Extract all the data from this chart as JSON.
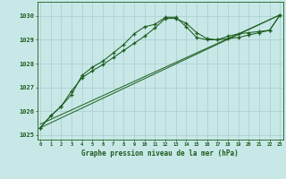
{
  "title": "Graphe pression niveau de la mer (hPa)",
  "background_color": "#c8e8e8",
  "grid_color": "#aacccc",
  "line_color": "#1a5c1a",
  "x_ticks": [
    0,
    1,
    2,
    3,
    4,
    5,
    6,
    7,
    8,
    9,
    10,
    11,
    12,
    13,
    14,
    15,
    16,
    17,
    18,
    19,
    20,
    21,
    22,
    23
  ],
  "ylim": [
    1024.8,
    1030.6
  ],
  "yticks": [
    1025,
    1026,
    1027,
    1028,
    1029,
    1030
  ],
  "series1_x": [
    0,
    1,
    2,
    3,
    4,
    5,
    6,
    7,
    8,
    9,
    10,
    11,
    12,
    13,
    14,
    15,
    16,
    17,
    18,
    19,
    20,
    21,
    22,
    23
  ],
  "series1_y": [
    1025.3,
    1025.8,
    1026.2,
    1026.7,
    1027.5,
    1027.85,
    1028.1,
    1028.45,
    1028.8,
    1029.25,
    1029.55,
    1029.65,
    1029.95,
    1029.95,
    1029.55,
    1029.1,
    1029.0,
    1029.0,
    1029.15,
    1029.25,
    1029.3,
    1029.35,
    1029.4,
    1030.05
  ],
  "series2_x": [
    0,
    1,
    2,
    3,
    4,
    5,
    6,
    7,
    8,
    9,
    10,
    11,
    12,
    13,
    14,
    15,
    16,
    17,
    18,
    19,
    20,
    21,
    22,
    23
  ],
  "series2_y": [
    1025.3,
    1025.8,
    1026.2,
    1026.85,
    1027.4,
    1027.7,
    1027.95,
    1028.25,
    1028.55,
    1028.85,
    1029.15,
    1029.5,
    1029.9,
    1029.9,
    1029.7,
    1029.3,
    1029.05,
    1029.0,
    1029.05,
    1029.1,
    1029.2,
    1029.3,
    1029.4,
    1030.05
  ],
  "series3_x": [
    0,
    23
  ],
  "series3_y": [
    1025.3,
    1030.05
  ],
  "series4_x": [
    0,
    23
  ],
  "series4_y": [
    1025.45,
    1030.05
  ]
}
